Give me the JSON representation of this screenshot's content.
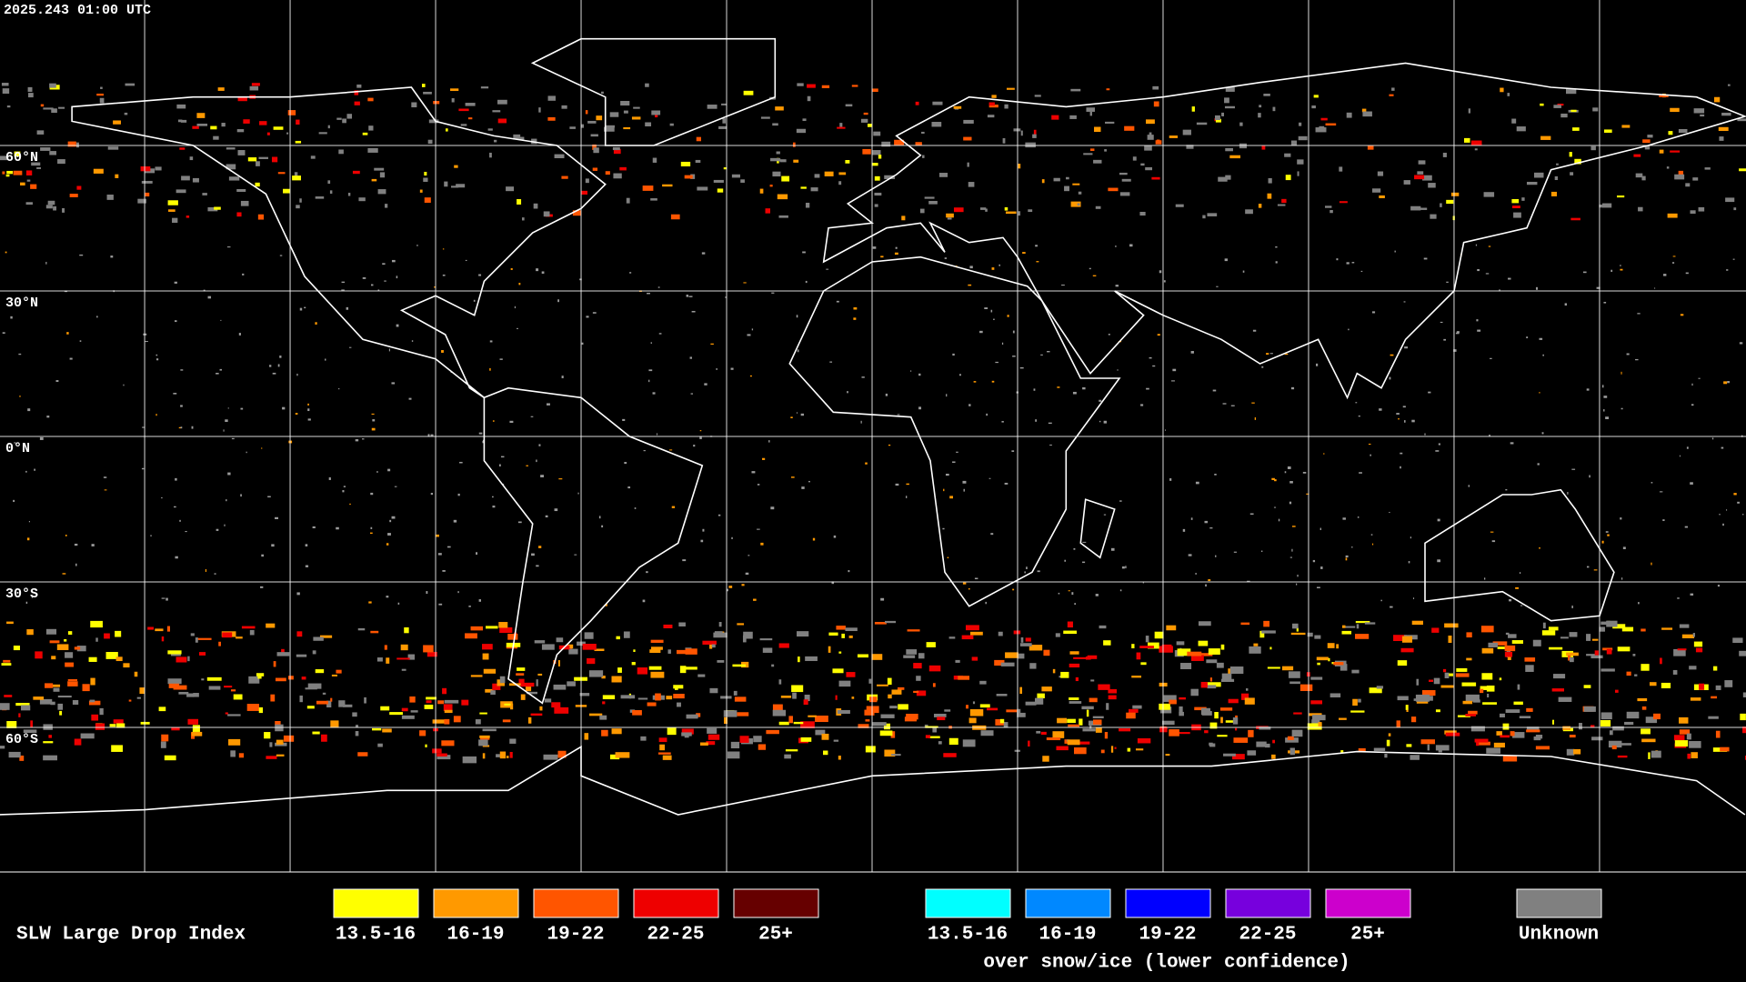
{
  "header": {
    "timestamp": "2025.243 01:00 UTC"
  },
  "map": {
    "lat_labels": [
      "60°N",
      "30°N",
      "0°N",
      "30°S",
      "60°S"
    ]
  },
  "legend": {
    "title": "SLW Large Drop Index",
    "items": [
      {
        "label": "13.5-16",
        "color": "#ffff00"
      },
      {
        "label": "16-19",
        "color": "#ff9900"
      },
      {
        "label": "19-22",
        "color": "#ff5500"
      },
      {
        "label": "22-25",
        "color": "#ee0000"
      },
      {
        "label": "25+",
        "color": "#660000"
      }
    ],
    "snow_items": [
      {
        "label": "13.5-16",
        "color": "#00ffff"
      },
      {
        "label": "16-19",
        "color": "#0088ff"
      },
      {
        "label": "19-22",
        "color": "#0000ff"
      },
      {
        "label": "22-25",
        "color": "#7700dd"
      },
      {
        "label": "25+",
        "color": "#cc00cc"
      }
    ],
    "snow_caption": "over snow/ice (lower confidence)",
    "unknown": {
      "label": "Unknown",
      "color": "#808080"
    }
  }
}
